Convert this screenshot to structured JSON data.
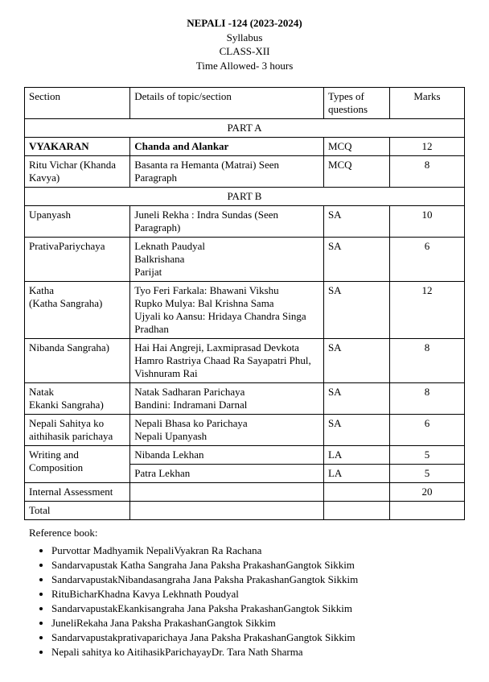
{
  "header": {
    "title": "NEPALI -124 (2023-2024)",
    "line2": "Syllabus",
    "line3": "CLASS-XII",
    "line4": "Time Allowed- 3 hours"
  },
  "columns": {
    "section": "Section",
    "details": "Details of topic/section",
    "types": "Types of questions",
    "marks": "Marks"
  },
  "parts": {
    "a": "PART A",
    "b": "PART B"
  },
  "rows": {
    "vyakaran": {
      "section": "VYAKARAN",
      "details": "Chanda and Alankar",
      "types": "MCQ",
      "marks": "12"
    },
    "ritu": {
      "section": "Ritu Vichar (Khanda Kavya)",
      "details": "Basanta ra Hemanta (Matrai)  Seen Paragraph",
      "types": "MCQ",
      "marks": "8"
    },
    "upanyash": {
      "section": "Upanyash",
      "details": "Juneli Rekha : Indra Sundas  (Seen Paragraph)",
      "types": "SA",
      "marks": "10"
    },
    "prativa": {
      "section": "PrativaPariychaya",
      "details": "Leknath Paudyal\nBalkrishana\nParijat",
      "types": "SA",
      "marks": "6"
    },
    "katha": {
      "section": "Katha\n (Katha Sangraha)",
      "details": "Tyo Feri Farkala: Bhawani Vikshu\nRupko Mulya: Bal Krishna Sama\nUjyali ko Aansu: Hridaya Chandra Singa Pradhan",
      "types": "SA",
      "marks": "12"
    },
    "nibanda": {
      "section": "Nibanda Sangraha)",
      "details": "Hai Hai Angreji, Laxmiprasad Devkota\nHamro Rastriya Chaad Ra Sayapatri Phul, Vishnuram Rai",
      "types": "SA",
      "marks": "8"
    },
    "natak": {
      "section": "Natak\nEkanki Sangraha)",
      "details": "Natak Sadharan Parichaya\nBandini: Indramani Darnal",
      "types": "SA",
      "marks": "8"
    },
    "nepali": {
      "section": "Nepali Sahitya ko aithihasik parichaya",
      "details": "Nepali Bhasa ko Parichaya\nNepali Upanyash",
      "types": "SA",
      "marks": "6"
    },
    "writing": {
      "section": "Writing and Composition",
      "d1": "Nibanda Lekhan",
      "t1": "LA",
      "m1": "5",
      "d2": "Patra Lekhan",
      "t2": "LA",
      "m2": "5"
    },
    "internal": {
      "section": "Internal Assessment",
      "marks": "20"
    },
    "total": {
      "section": "Total"
    }
  },
  "reference": {
    "label": "Reference book:",
    "items": [
      "Purvottar Madhyamik NepaliVyakran Ra Rachana",
      "Sandarvapustak Katha Sangraha Jana Paksha PrakashanGangtok Sikkim",
      "SandarvapustakNibandasangraha Jana Paksha PrakashanGangtok Sikkim",
      "RituBicharKhadna Kavya Lekhnath Poudyal",
      "SandarvapustakEkankisangraha Jana Paksha PrakashanGangtok Sikkim",
      "JuneliRekaha Jana Paksha PrakashanGangtok Sikkim",
      "Sandarvapustakprativaparichaya Jana Paksha PrakashanGangtok Sikkim",
      "Nepali sahitya ko AitihasikParichayayDr. Tara Nath Sharma"
    ]
  }
}
